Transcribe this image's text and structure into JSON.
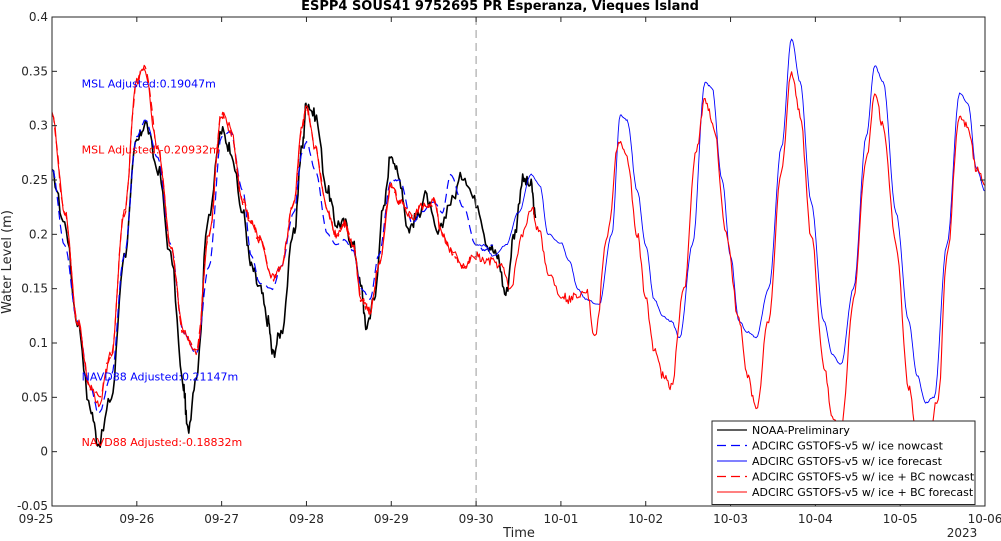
{
  "chart_data": {
    "type": "line",
    "title": "ESPP4 SOUS41 9752695 PR Esperanza, Vieques Island",
    "xlabel": "Time",
    "ylabel": "Water Level (m)",
    "x_ticks": [
      "09-25",
      "09-26",
      "09-27",
      "09-28",
      "09-29",
      "09-30",
      "10-01",
      "10-02",
      "10-03",
      "10-04",
      "10-05",
      "10-06"
    ],
    "x_year_label": "2023",
    "x_range_days": [
      0,
      11
    ],
    "ylim": [
      -0.05,
      0.4
    ],
    "y_ticks": [
      "-0.05",
      "0",
      "0.05",
      "0.1",
      "0.15",
      "0.2",
      "0.25",
      "0.3",
      "0.35",
      "0.4"
    ],
    "nowcast_forecast_divider_x": "09-30",
    "grid": false,
    "legend_position": "bottom-right",
    "annotations": [
      {
        "text": "MSL Adjusted:0.19047m",
        "color": "#0000ff",
        "x_day": 0.35,
        "y": 0.339
      },
      {
        "text": "MSL Adjusted:-0.20932m",
        "color": "#ff0000",
        "x_day": 0.35,
        "y": 0.278
      },
      {
        "text": "NAVD88 Adjusted:0.21147m",
        "color": "#0000ff",
        "x_day": 0.35,
        "y": 0.069
      },
      {
        "text": "NAVD88 Adjusted:-0.18832m",
        "color": "#ff0000",
        "x_day": 0.35,
        "y": 0.009
      }
    ],
    "series": [
      {
        "name": "NOAA-Preliminary",
        "color": "#000000",
        "style": "solid",
        "width": 1.6,
        "points": [
          [
            0.0,
            0.255
          ],
          [
            0.15,
            0.21
          ],
          [
            0.3,
            0.12
          ],
          [
            0.45,
            0.04
          ],
          [
            0.55,
            0.008
          ],
          [
            0.7,
            0.05
          ],
          [
            0.85,
            0.18
          ],
          [
            1.0,
            0.285
          ],
          [
            1.1,
            0.302
          ],
          [
            1.25,
            0.26
          ],
          [
            1.4,
            0.18
          ],
          [
            1.55,
            0.06
          ],
          [
            1.6,
            0.02
          ],
          [
            1.7,
            0.07
          ],
          [
            1.85,
            0.22
          ],
          [
            2.0,
            0.295
          ],
          [
            2.1,
            0.28
          ],
          [
            2.25,
            0.22
          ],
          [
            2.35,
            0.17
          ],
          [
            2.45,
            0.15
          ],
          [
            2.55,
            0.12
          ],
          [
            2.6,
            0.09
          ],
          [
            2.7,
            0.11
          ],
          [
            2.85,
            0.2
          ],
          [
            2.95,
            0.28
          ],
          [
            3.0,
            0.322
          ],
          [
            3.1,
            0.31
          ],
          [
            3.25,
            0.24
          ],
          [
            3.35,
            0.21
          ],
          [
            3.45,
            0.21
          ],
          [
            3.55,
            0.19
          ],
          [
            3.65,
            0.15
          ],
          [
            3.7,
            0.115
          ],
          [
            3.8,
            0.14
          ],
          [
            3.9,
            0.22
          ],
          [
            4.0,
            0.275
          ],
          [
            4.1,
            0.25
          ],
          [
            4.2,
            0.205
          ],
          [
            4.3,
            0.215
          ],
          [
            4.4,
            0.235
          ],
          [
            4.55,
            0.2
          ],
          [
            4.7,
            0.23
          ],
          [
            4.85,
            0.255
          ],
          [
            5.0,
            0.23
          ],
          [
            5.15,
            0.19
          ],
          [
            5.25,
            0.18
          ],
          [
            5.35,
            0.145
          ],
          [
            5.45,
            0.2
          ],
          [
            5.55,
            0.25
          ],
          [
            5.65,
            0.245
          ],
          [
            5.7,
            0.215
          ]
        ]
      },
      {
        "name": "ADCIRC GSTOFS-v5 w/ ice nowcast",
        "color": "#0000ff",
        "style": "dashed",
        "width": 1.2,
        "points": [
          [
            0.0,
            0.26
          ],
          [
            0.15,
            0.19
          ],
          [
            0.3,
            0.12
          ],
          [
            0.45,
            0.06
          ],
          [
            0.55,
            0.035
          ],
          [
            0.7,
            0.07
          ],
          [
            0.85,
            0.18
          ],
          [
            1.0,
            0.29
          ],
          [
            1.1,
            0.305
          ],
          [
            1.25,
            0.27
          ],
          [
            1.4,
            0.19
          ],
          [
            1.55,
            0.11
          ],
          [
            1.7,
            0.09
          ],
          [
            1.85,
            0.17
          ],
          [
            2.0,
            0.29
          ],
          [
            2.1,
            0.295
          ],
          [
            2.25,
            0.24
          ],
          [
            2.35,
            0.18
          ],
          [
            2.45,
            0.155
          ],
          [
            2.6,
            0.15
          ],
          [
            2.7,
            0.17
          ],
          [
            2.85,
            0.22
          ],
          [
            2.95,
            0.275
          ],
          [
            3.0,
            0.285
          ],
          [
            3.1,
            0.26
          ],
          [
            3.25,
            0.2
          ],
          [
            3.35,
            0.19
          ],
          [
            3.45,
            0.195
          ],
          [
            3.55,
            0.185
          ],
          [
            3.65,
            0.15
          ],
          [
            3.75,
            0.14
          ],
          [
            3.85,
            0.18
          ],
          [
            4.0,
            0.25
          ],
          [
            4.1,
            0.25
          ],
          [
            4.25,
            0.21
          ],
          [
            4.35,
            0.22
          ],
          [
            4.5,
            0.23
          ],
          [
            4.6,
            0.22
          ],
          [
            4.7,
            0.255
          ],
          [
            4.85,
            0.225
          ],
          [
            5.0,
            0.19
          ],
          [
            5.1,
            0.185
          ],
          [
            5.2,
            0.19
          ]
        ]
      },
      {
        "name": "ADCIRC GSTOFS-v5 w/ ice forecast",
        "color": "#0000ff",
        "style": "solid",
        "width": 0.9,
        "points": [
          [
            5.0,
            0.19
          ],
          [
            5.1,
            0.19
          ],
          [
            5.2,
            0.18
          ],
          [
            5.35,
            0.19
          ],
          [
            5.5,
            0.22
          ],
          [
            5.65,
            0.255
          ],
          [
            5.75,
            0.245
          ],
          [
            5.85,
            0.2
          ],
          [
            6.0,
            0.192
          ],
          [
            6.1,
            0.175
          ],
          [
            6.2,
            0.15
          ],
          [
            6.3,
            0.14
          ],
          [
            6.45,
            0.135
          ],
          [
            6.6,
            0.2
          ],
          [
            6.7,
            0.31
          ],
          [
            6.78,
            0.305
          ],
          [
            6.9,
            0.24
          ],
          [
            7.0,
            0.19
          ],
          [
            7.1,
            0.14
          ],
          [
            7.2,
            0.125
          ],
          [
            7.3,
            0.12
          ],
          [
            7.4,
            0.105
          ],
          [
            7.55,
            0.19
          ],
          [
            7.7,
            0.34
          ],
          [
            7.78,
            0.335
          ],
          [
            7.9,
            0.25
          ],
          [
            8.0,
            0.18
          ],
          [
            8.1,
            0.12
          ],
          [
            8.2,
            0.11
          ],
          [
            8.3,
            0.105
          ],
          [
            8.45,
            0.15
          ],
          [
            8.6,
            0.28
          ],
          [
            8.72,
            0.38
          ],
          [
            8.82,
            0.34
          ],
          [
            8.95,
            0.23
          ],
          [
            9.1,
            0.12
          ],
          [
            9.2,
            0.09
          ],
          [
            9.3,
            0.08
          ],
          [
            9.45,
            0.15
          ],
          [
            9.6,
            0.29
          ],
          [
            9.7,
            0.355
          ],
          [
            9.8,
            0.34
          ],
          [
            9.95,
            0.22
          ],
          [
            10.1,
            0.12
          ],
          [
            10.2,
            0.07
          ],
          [
            10.3,
            0.045
          ],
          [
            10.4,
            0.05
          ],
          [
            10.55,
            0.19
          ],
          [
            10.7,
            0.33
          ],
          [
            10.8,
            0.32
          ],
          [
            10.9,
            0.26
          ],
          [
            11.0,
            0.24
          ]
        ]
      },
      {
        "name": "ADCIRC GSTOFS-v5 w/ ice + BC nowcast",
        "color": "#ff0000",
        "style": "dashed",
        "width": 1.2,
        "points": [
          [
            0.0,
            0.31
          ],
          [
            0.15,
            0.22
          ],
          [
            0.3,
            0.12
          ],
          [
            0.45,
            0.06
          ],
          [
            0.55,
            0.05
          ],
          [
            0.7,
            0.09
          ],
          [
            0.85,
            0.22
          ],
          [
            1.0,
            0.34
          ],
          [
            1.1,
            0.355
          ],
          [
            1.25,
            0.28
          ],
          [
            1.4,
            0.19
          ],
          [
            1.55,
            0.11
          ],
          [
            1.7,
            0.09
          ],
          [
            1.85,
            0.2
          ],
          [
            2.0,
            0.31
          ],
          [
            2.1,
            0.295
          ],
          [
            2.25,
            0.23
          ],
          [
            2.35,
            0.21
          ],
          [
            2.45,
            0.195
          ],
          [
            2.6,
            0.16
          ],
          [
            2.7,
            0.17
          ],
          [
            2.85,
            0.23
          ],
          [
            2.95,
            0.3
          ],
          [
            3.0,
            0.315
          ],
          [
            3.1,
            0.28
          ],
          [
            3.25,
            0.22
          ],
          [
            3.35,
            0.2
          ],
          [
            3.45,
            0.21
          ],
          [
            3.55,
            0.19
          ],
          [
            3.65,
            0.14
          ],
          [
            3.75,
            0.13
          ],
          [
            3.85,
            0.17
          ],
          [
            4.0,
            0.245
          ],
          [
            4.1,
            0.23
          ],
          [
            4.25,
            0.215
          ],
          [
            4.35,
            0.225
          ],
          [
            4.5,
            0.23
          ],
          [
            4.6,
            0.2
          ],
          [
            4.7,
            0.185
          ],
          [
            4.85,
            0.17
          ],
          [
            5.0,
            0.18
          ]
        ]
      },
      {
        "name": "ADCIRC GSTOFS-v5 w/ ice + BC forecast",
        "color": "#ff0000",
        "style": "solid",
        "width": 1.1,
        "points": [
          [
            0.0,
            0.31
          ],
          [
            0.15,
            0.22
          ],
          [
            0.3,
            0.12
          ],
          [
            0.45,
            0.06
          ],
          [
            0.55,
            0.045
          ],
          [
            0.7,
            0.09
          ],
          [
            0.85,
            0.22
          ],
          [
            1.0,
            0.34
          ],
          [
            1.08,
            0.355
          ],
          [
            1.25,
            0.28
          ],
          [
            1.4,
            0.19
          ],
          [
            1.55,
            0.11
          ],
          [
            1.7,
            0.09
          ],
          [
            1.85,
            0.2
          ],
          [
            2.0,
            0.31
          ],
          [
            2.1,
            0.3
          ],
          [
            2.25,
            0.23
          ],
          [
            2.35,
            0.21
          ],
          [
            2.45,
            0.195
          ],
          [
            2.6,
            0.16
          ],
          [
            2.7,
            0.17
          ],
          [
            2.85,
            0.23
          ],
          [
            2.95,
            0.3
          ],
          [
            3.0,
            0.315
          ],
          [
            3.1,
            0.28
          ],
          [
            3.25,
            0.22
          ],
          [
            3.35,
            0.2
          ],
          [
            3.45,
            0.21
          ],
          [
            3.55,
            0.19
          ],
          [
            3.65,
            0.14
          ],
          [
            3.75,
            0.13
          ],
          [
            3.85,
            0.17
          ],
          [
            4.0,
            0.245
          ],
          [
            4.1,
            0.23
          ],
          [
            4.25,
            0.215
          ],
          [
            4.35,
            0.225
          ],
          [
            4.5,
            0.23
          ],
          [
            4.6,
            0.2
          ],
          [
            4.7,
            0.185
          ],
          [
            4.85,
            0.17
          ],
          [
            5.0,
            0.18
          ],
          [
            5.1,
            0.175
          ],
          [
            5.2,
            0.175
          ],
          [
            5.3,
            0.17
          ],
          [
            5.4,
            0.15
          ],
          [
            5.55,
            0.2
          ],
          [
            5.65,
            0.225
          ],
          [
            5.75,
            0.2
          ],
          [
            5.85,
            0.165
          ],
          [
            6.0,
            0.145
          ],
          [
            6.1,
            0.14
          ],
          [
            6.2,
            0.145
          ],
          [
            6.3,
            0.15
          ],
          [
            6.4,
            0.105
          ],
          [
            6.55,
            0.2
          ],
          [
            6.68,
            0.285
          ],
          [
            6.78,
            0.27
          ],
          [
            6.9,
            0.2
          ],
          [
            7.0,
            0.14
          ],
          [
            7.1,
            0.095
          ],
          [
            7.2,
            0.07
          ],
          [
            7.3,
            0.06
          ],
          [
            7.45,
            0.15
          ],
          [
            7.6,
            0.28
          ],
          [
            7.7,
            0.325
          ],
          [
            7.8,
            0.3
          ],
          [
            7.95,
            0.2
          ],
          [
            8.1,
            0.12
          ],
          [
            8.2,
            0.07
          ],
          [
            8.3,
            0.04
          ],
          [
            8.45,
            0.12
          ],
          [
            8.6,
            0.26
          ],
          [
            8.72,
            0.35
          ],
          [
            8.82,
            0.31
          ],
          [
            8.95,
            0.2
          ],
          [
            9.1,
            0.08
          ],
          [
            9.2,
            0.03
          ],
          [
            9.3,
            0.02
          ],
          [
            9.45,
            0.14
          ],
          [
            9.6,
            0.27
          ],
          [
            9.7,
            0.33
          ],
          [
            9.8,
            0.3
          ],
          [
            9.95,
            0.19
          ],
          [
            10.1,
            0.06
          ],
          [
            10.2,
            0.01
          ],
          [
            10.3,
            -0.01
          ],
          [
            10.45,
            0.05
          ],
          [
            10.55,
            0.18
          ],
          [
            10.7,
            0.31
          ],
          [
            10.8,
            0.3
          ],
          [
            10.9,
            0.26
          ],
          [
            11.0,
            0.245
          ]
        ]
      }
    ]
  }
}
